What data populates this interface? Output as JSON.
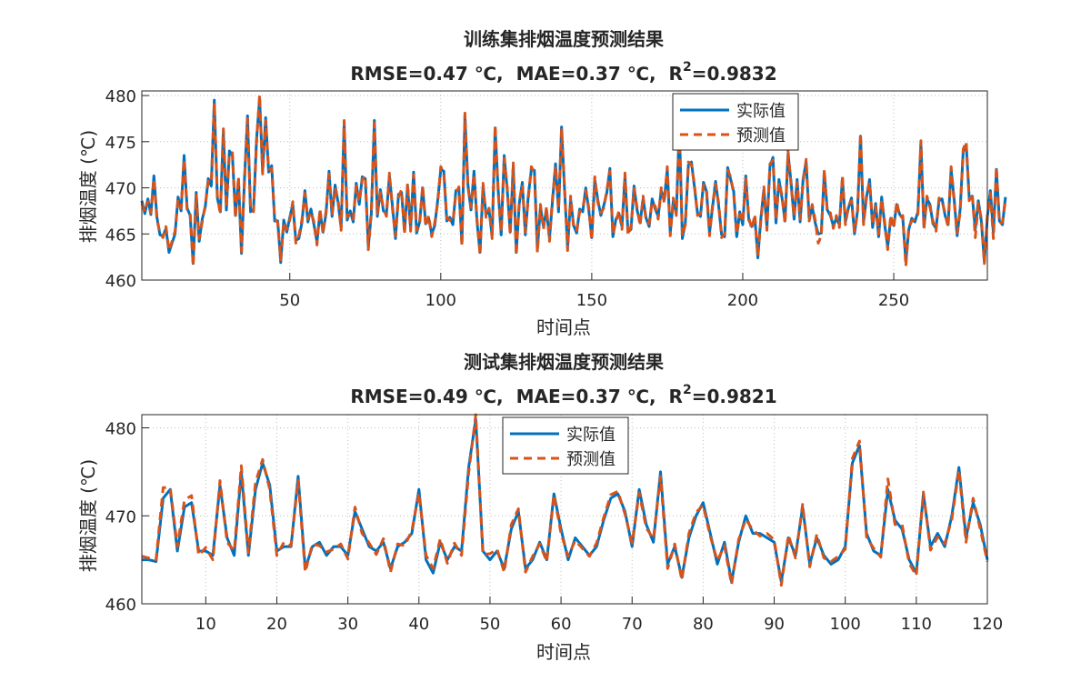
{
  "chart_data": [
    {
      "type": "line",
      "title": "训练集排烟温度预测结果",
      "subtitle": {
        "rmse": "RMSE=0.47 ℃,",
        "mae": "MAE=0.37 ℃,",
        "r2_label": "R",
        "r2_sup": "2",
        "r2_value": "=0.9832"
      },
      "xlabel": "时间点",
      "ylabel": "排烟温度 (℃)",
      "xlim": [
        1,
        281
      ],
      "ylim": [
        460,
        480.5
      ],
      "xticks": [
        50,
        100,
        150,
        200,
        250
      ],
      "yticks": [
        460,
        465,
        470,
        475,
        480
      ],
      "grid": true,
      "legend_position": "top-right",
      "series": [
        {
          "name": "实际值",
          "color": "#0072BD",
          "style": "solid",
          "values": [
            468.6,
            467.2,
            468.8,
            467.1,
            471.3,
            466.8,
            464.9,
            464.8,
            465.6,
            463.0,
            464.0,
            465.0,
            469.0,
            467.5,
            473.5,
            467.8,
            467.0,
            461.8,
            469.5,
            464.2,
            466.6,
            467.9,
            471.0,
            470.2,
            479.5,
            468.9,
            467.4,
            476.1,
            467.6,
            474.0,
            473.5,
            467.0,
            470.9,
            462.9,
            471.0,
            477.8,
            467.4,
            467.7,
            475.3,
            479.7,
            471.8,
            477.6,
            471.7,
            472.4,
            466.4,
            466.4,
            461.9,
            466.5,
            465.2,
            466.8,
            468.2,
            464.3,
            464.5,
            466.2,
            469.7,
            466.3,
            467.7,
            466.0,
            464.1,
            467.4,
            465.2,
            467.2,
            471.8,
            466.9,
            470.3,
            468.4,
            465.7,
            477.0,
            466.5,
            467.5,
            466.3,
            470.5,
            468.2,
            471.2,
            471.0,
            463.6,
            467.2,
            477.3,
            466.9,
            469.8,
            467.5,
            467.2,
            471.3,
            468.0,
            464.5,
            469.3,
            469.5,
            465.3,
            470.2,
            465.6,
            471.7,
            465.1,
            466.3,
            470.0,
            466.1,
            466.7,
            465.0,
            465.9,
            468.7,
            472.0,
            471.8,
            466.4,
            466.8,
            466.0,
            469.7,
            469.8,
            464.0,
            477.8,
            470.3,
            467.6,
            471.8,
            466.3,
            463.0,
            470.2,
            467.1,
            467.5,
            464.8,
            476.5,
            469.8,
            464.9,
            473.5,
            469.8,
            465.2,
            472.4,
            463.0,
            468.3,
            470.6,
            464.9,
            469.2,
            472.0,
            471.9,
            463.3,
            467.9,
            465.8,
            467.6,
            464.5,
            468.6,
            472.6,
            467.4,
            476.6,
            469.7,
            463.5,
            468.8,
            465.9,
            465.1,
            467.7,
            467.4,
            470.0,
            467.6,
            464.6,
            470.9,
            468.7,
            467.0,
            468.1,
            469.5,
            472.1,
            464.7,
            466.6,
            467.2,
            465.8,
            471.3,
            465.2,
            465.5,
            470.2,
            467.6,
            466.2,
            468.8,
            466.7,
            465.8,
            468.8,
            467.7,
            466.9,
            469.7,
            468.7,
            472.0,
            465.1,
            468.6,
            467.3,
            476.7,
            464.5,
            466.3,
            472.5,
            472.8,
            470.1,
            467.3,
            466.9,
            470.6,
            469.6,
            465.1,
            467.9,
            470.7,
            468.1,
            464.9,
            464.7,
            472.2,
            470.9,
            469.6,
            464.7,
            467.4,
            466.0,
            471.3,
            466.5,
            465.8,
            466.8,
            462.4,
            466.7,
            469.8,
            465.7,
            472.3,
            473.3,
            466.2,
            470.9,
            468.9,
            466.4,
            473.7,
            470.6,
            466.6,
            470.9,
            466.3,
            471.0,
            472.8,
            466.7,
            467.9,
            466.2,
            465.0,
            465.1,
            471.7,
            467.6,
            467.0,
            465.9,
            466.7,
            466.0,
            471.0,
            466.3,
            467.8,
            468.9,
            465.0,
            467.5,
            475.6,
            466.3,
            469.0,
            470.9,
            465.7,
            468.3,
            464.7,
            469.0,
            466.0,
            463.6,
            466.7,
            465.9,
            468.2,
            467.1,
            466.7,
            462.0,
            465.5,
            466.7,
            466.3,
            467.4,
            474.8,
            465.8,
            468.8,
            468.2,
            466.1,
            465.6,
            468.6,
            468.8,
            467.0,
            466.0,
            472.0,
            468.8,
            464.8,
            467.7,
            473.9,
            474.7,
            468.9,
            469.1,
            465.5,
            468.6,
            466.4,
            462.0,
            466.8,
            469.7,
            465.1,
            472.0,
            466.4,
            466.0,
            469.0
          ]
        },
        {
          "name": "预测值",
          "color": "#D95319",
          "style": "dashed",
          "values": [
            468.3,
            467.4,
            468.5,
            467.3,
            471.0,
            466.6,
            465.1,
            464.6,
            465.8,
            463.2,
            464.2,
            465.3,
            468.7,
            467.8,
            473.1,
            467.5,
            467.3,
            461.5,
            469.2,
            464.5,
            466.3,
            468.1,
            470.7,
            470.5,
            479.2,
            469.2,
            467.1,
            476.4,
            467.9,
            473.7,
            473.8,
            466.7,
            471.2,
            463.1,
            470.7,
            477.5,
            467.7,
            467.4,
            475.0,
            480.1,
            471.5,
            477.3,
            472.0,
            472.1,
            466.7,
            466.2,
            462.2,
            466.3,
            465.5,
            466.5,
            468.5,
            464.0,
            464.8,
            466.5,
            469.4,
            466.6,
            467.4,
            466.3,
            463.8,
            467.7,
            465.0,
            467.5,
            471.5,
            467.2,
            470.0,
            468.7,
            465.4,
            477.3,
            466.8,
            467.2,
            466.6,
            470.2,
            468.5,
            470.9,
            471.3,
            463.3,
            467.5,
            477.0,
            467.2,
            469.5,
            467.8,
            466.9,
            471.6,
            467.7,
            464.8,
            469.0,
            469.8,
            465.0,
            470.5,
            465.3,
            471.4,
            465.4,
            466.0,
            470.3,
            465.8,
            467.0,
            464.7,
            466.2,
            468.4,
            472.3,
            471.5,
            466.7,
            466.5,
            466.3,
            469.4,
            470.1,
            463.7,
            478.1,
            470.0,
            467.9,
            471.5,
            466.6,
            462.7,
            470.5,
            466.8,
            467.8,
            464.5,
            476.8,
            469.5,
            465.2,
            473.2,
            470.1,
            464.9,
            472.7,
            462.7,
            468.6,
            470.3,
            465.2,
            468.9,
            472.3,
            471.6,
            463.0,
            468.2,
            465.5,
            467.9,
            464.2,
            468.9,
            472.3,
            467.7,
            476.3,
            470.0,
            463.2,
            469.1,
            465.6,
            465.4,
            467.4,
            467.7,
            469.7,
            467.9,
            464.3,
            471.2,
            468.4,
            467.3,
            467.8,
            469.8,
            471.8,
            465.0,
            466.3,
            467.5,
            465.5,
            471.6,
            464.9,
            465.8,
            469.9,
            467.9,
            465.9,
            469.1,
            466.4,
            466.1,
            468.5,
            468.0,
            466.6,
            470.0,
            468.4,
            472.3,
            464.8,
            468.9,
            467.0,
            476.4,
            464.8,
            466.0,
            472.8,
            472.5,
            470.4,
            467.0,
            467.2,
            470.3,
            469.9,
            464.8,
            468.2,
            470.4,
            468.4,
            464.6,
            465.0,
            471.9,
            471.2,
            469.3,
            465.0,
            467.1,
            466.3,
            471.0,
            466.8,
            465.5,
            467.1,
            462.6,
            466.4,
            470.1,
            465.4,
            472.6,
            473.0,
            466.5,
            470.6,
            469.2,
            466.1,
            474.0,
            470.3,
            466.9,
            470.6,
            466.6,
            470.7,
            473.1,
            466.4,
            468.2,
            466.5,
            464.0,
            464.8,
            472.0,
            467.3,
            467.3,
            465.6,
            467.0,
            465.7,
            471.3,
            466.0,
            468.1,
            468.6,
            465.3,
            467.2,
            475.9,
            466.0,
            469.3,
            470.6,
            466.0,
            468.0,
            465.0,
            468.7,
            466.3,
            463.3,
            467.0,
            465.6,
            468.5,
            466.8,
            467.0,
            461.5,
            465.8,
            466.4,
            466.6,
            467.1,
            475.1,
            465.5,
            469.1,
            467.9,
            466.4,
            465.3,
            468.9,
            468.5,
            467.3,
            465.7,
            472.3,
            468.5,
            465.1,
            467.4,
            474.2,
            475.0,
            468.6,
            469.4,
            464.6,
            468.3,
            466.7,
            461.8,
            467.1,
            469.4,
            464.5,
            472.3,
            466.1,
            466.3,
            468.7
          ]
        }
      ]
    },
    {
      "type": "line",
      "title": "测试集排烟温度预测结果",
      "subtitle": {
        "rmse": "RMSE=0.49 ℃,",
        "mae": "MAE=0.37 ℃,",
        "r2_label": "R",
        "r2_sup": "2",
        "r2_value": "=0.9821"
      },
      "xlabel": "时间点",
      "ylabel": "排烟温度 (℃)",
      "xlim": [
        1,
        120
      ],
      "ylim": [
        460,
        481.5
      ],
      "xticks": [
        10,
        20,
        30,
        40,
        50,
        60,
        70,
        80,
        90,
        100,
        110,
        120
      ],
      "yticks": [
        460,
        470,
        480
      ],
      "grid": true,
      "legend_position": "top-center",
      "series": [
        {
          "name": "实际值",
          "color": "#0072BD",
          "style": "solid",
          "values": [
            465.0,
            465.0,
            464.8,
            472.0,
            473.0,
            466.0,
            471.0,
            471.5,
            466.0,
            466.0,
            465.5,
            473.5,
            467.5,
            465.5,
            475.0,
            465.5,
            473.0,
            476.0,
            473.5,
            466.0,
            466.5,
            466.5,
            474.5,
            464.0,
            466.5,
            467.0,
            465.5,
            466.5,
            466.5,
            465.5,
            470.5,
            468.5,
            466.5,
            466.0,
            467.0,
            464.0,
            466.5,
            467.0,
            468.0,
            473.0,
            465.0,
            463.5,
            467.0,
            465.0,
            466.5,
            466.0,
            475.5,
            481.0,
            466.0,
            465.0,
            466.0,
            464.0,
            468.5,
            470.5,
            464.0,
            465.0,
            467.0,
            465.0,
            472.5,
            468.5,
            465.0,
            467.5,
            466.5,
            465.5,
            466.5,
            469.5,
            472.0,
            472.5,
            470.5,
            466.5,
            473.0,
            469.0,
            467.0,
            475.0,
            464.5,
            466.5,
            463.0,
            467.5,
            470.0,
            471.5,
            468.0,
            464.5,
            467.0,
            462.5,
            467.0,
            470.0,
            468.0,
            468.0,
            467.5,
            467.0,
            462.5,
            467.5,
            465.5,
            471.0,
            464.5,
            467.5,
            465.5,
            464.5,
            465.0,
            466.5,
            476.0,
            478.0,
            468.0,
            466.0,
            465.5,
            473.0,
            469.5,
            468.5,
            465.0,
            463.5,
            472.5,
            466.5,
            468.0,
            466.5,
            470.0,
            475.5,
            467.5,
            471.5,
            469.0,
            465.0
          ]
        },
        {
          "name": "预测值",
          "color": "#D95319",
          "style": "dashed",
          "values": [
            465.4,
            465.2,
            465.0,
            473.2,
            473.2,
            466.5,
            471.8,
            472.3,
            465.5,
            466.4,
            465.0,
            474.0,
            467.0,
            466.0,
            475.7,
            465.8,
            473.8,
            476.4,
            473.0,
            465.5,
            467.0,
            466.6,
            474.0,
            463.6,
            466.8,
            466.6,
            465.9,
            466.2,
            466.8,
            465.1,
            471.0,
            468.0,
            466.9,
            465.6,
            467.4,
            463.6,
            466.8,
            466.6,
            468.3,
            472.6,
            465.5,
            464.0,
            467.4,
            464.6,
            466.9,
            465.5,
            474.9,
            481.5,
            465.6,
            465.7,
            466.2,
            463.6,
            469.0,
            470.8,
            463.6,
            465.4,
            466.8,
            464.8,
            472.4,
            468.0,
            465.4,
            467.2,
            466.3,
            465.4,
            466.9,
            469.8,
            472.4,
            472.8,
            470.2,
            466.9,
            472.6,
            468.6,
            467.4,
            474.5,
            464.0,
            466.8,
            462.7,
            468.0,
            470.4,
            471.2,
            467.7,
            464.9,
            466.6,
            462.2,
            467.3,
            469.6,
            468.4,
            467.7,
            468.0,
            467.3,
            462.1,
            467.8,
            465.2,
            471.3,
            464.2,
            467.9,
            465.2,
            464.8,
            465.4,
            466.2,
            476.5,
            478.5,
            467.6,
            466.3,
            465.3,
            474.2,
            469.0,
            469.0,
            464.6,
            463.2,
            472.7,
            466.1,
            467.6,
            466.8,
            469.6,
            475.2,
            467.0,
            472.0,
            468.5,
            464.8
          ]
        }
      ]
    }
  ]
}
